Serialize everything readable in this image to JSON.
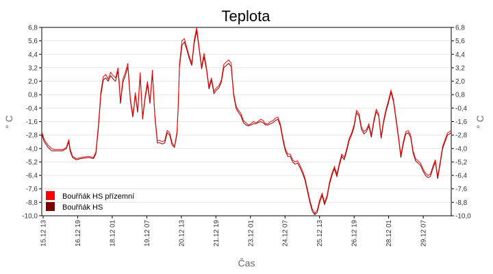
{
  "chart_data": {
    "type": "line",
    "title": "Teplota",
    "xlabel": "Čas",
    "ylabel": "° C",
    "ylim": [
      -10.0,
      6.8
    ],
    "y_ticks": [
      "6,8",
      "5,6",
      "4,4",
      "3,2",
      "2,0",
      "0,8",
      "-0,4",
      "-1,6",
      "-2,8",
      "-4,0",
      "-5,2",
      "-6,4",
      "-7,6",
      "-8,8",
      "-10,0"
    ],
    "x_ticks": [
      "15.12 13",
      "16.12 19",
      "18.12 01",
      "19.12 07",
      "20.12 13",
      "21.12 19",
      "23.12 01",
      "24.12 07",
      "25.12 13",
      "26.12 19",
      "28.12 01",
      "29.12 07"
    ],
    "x_range_hours": [
      0,
      333
    ],
    "grid": true,
    "legend_position": "bottom-left",
    "series": [
      {
        "name": "Bouřňák HS přízemní",
        "color": "#ff0000",
        "x": [
          0,
          2,
          5,
          8,
          10,
          14,
          17,
          20,
          22,
          23,
          25,
          28,
          32,
          38,
          42,
          44,
          46,
          48,
          50,
          52,
          54,
          56,
          58,
          60,
          62,
          63,
          64,
          66,
          68,
          70,
          72,
          74,
          75,
          76,
          78,
          80,
          82,
          84,
          86,
          88,
          90,
          92,
          94,
          96,
          98,
          100,
          102,
          104,
          106,
          108,
          110,
          111,
          112,
          114,
          116,
          118,
          120,
          122,
          124,
          126,
          128,
          130,
          132,
          134,
          136,
          138,
          140,
          142,
          144,
          146,
          148,
          150,
          152,
          154,
          156,
          158,
          160,
          162,
          164,
          166,
          168,
          170,
          172,
          174,
          176,
          178,
          180,
          182,
          184,
          186,
          188,
          190,
          192,
          194,
          196,
          198,
          200,
          202,
          204,
          206,
          208,
          210,
          212,
          214,
          216,
          218,
          220,
          222,
          224,
          226,
          228,
          230,
          232,
          234,
          236,
          238,
          240,
          242,
          244,
          246,
          248,
          250,
          252,
          254,
          256,
          258,
          260,
          262,
          264,
          266,
          268,
          270,
          272,
          274,
          276,
          278,
          280,
          282,
          284,
          286,
          288,
          290,
          292,
          294,
          296,
          298,
          300,
          302,
          304,
          306,
          308,
          310,
          312,
          314,
          316,
          318,
          320,
          322,
          324,
          326,
          328,
          330,
          333
        ],
        "y": [
          -2.5,
          -3.2,
          -3.7,
          -4.0,
          -4.1,
          -4.1,
          -4.1,
          -3.9,
          -3.2,
          -4.0,
          -4.7,
          -4.9,
          -4.8,
          -4.7,
          -4.8,
          -4.3,
          -2.0,
          1.0,
          2.4,
          2.6,
          2.2,
          2.8,
          2.5,
          2.3,
          3.2,
          2.0,
          0.2,
          2.2,
          2.8,
          3.6,
          0.5,
          -1.0,
          -0.2,
          1.0,
          -0.6,
          2.8,
          -1.2,
          0.6,
          2.0,
          0.2,
          3.0,
          -1.0,
          -3.3,
          -3.3,
          -3.4,
          -3.3,
          -2.4,
          -2.6,
          -3.5,
          -3.8,
          -2.5,
          0.0,
          3.5,
          5.6,
          5.8,
          5.0,
          4.2,
          3.6,
          5.7,
          6.8,
          5.0,
          3.3,
          4.5,
          3.2,
          1.5,
          2.3,
          1.1,
          1.4,
          1.6,
          2.1,
          3.5,
          3.7,
          3.9,
          3.6,
          1.0,
          -0.2,
          -0.6,
          -0.9,
          -1.5,
          -1.7,
          -1.9,
          -1.8,
          -1.6,
          -1.7,
          -1.6,
          -1.4,
          -1.5,
          -1.8,
          -1.8,
          -1.6,
          -1.5,
          -1.3,
          -1.2,
          -1.8,
          -3.0,
          -4.0,
          -4.5,
          -4.5,
          -5.0,
          -5.2,
          -5.1,
          -5.5,
          -6.0,
          -6.6,
          -7.6,
          -8.6,
          -9.4,
          -9.8,
          -9.5,
          -8.6,
          -8.0,
          -8.8,
          -8.2,
          -7.0,
          -6.2,
          -5.6,
          -6.3,
          -5.3,
          -4.5,
          -4.8,
          -4.0,
          -3.1,
          -2.6,
          -1.9,
          -0.6,
          -0.9,
          -2.1,
          -2.5,
          -2.3,
          -1.8,
          -2.8,
          -1.5,
          -0.5,
          -0.9,
          -2.9,
          -1.5,
          -0.5,
          0.3,
          1.2,
          0.4,
          -1.2,
          -2.8,
          -4.6,
          -3.4,
          -2.5,
          -2.4,
          -2.8,
          -4.2,
          -4.9,
          -5.1,
          -5.3,
          -5.8,
          -6.2,
          -6.4,
          -6.3,
          -5.6,
          -5.0,
          -6.5,
          -5.2,
          -3.8,
          -3.2,
          -2.6,
          -2.4
        ]
      },
      {
        "name": "Bouřňák HS",
        "color": "#800000",
        "x": [
          0,
          2,
          5,
          8,
          10,
          14,
          17,
          20,
          22,
          23,
          25,
          28,
          32,
          38,
          42,
          44,
          46,
          48,
          50,
          52,
          54,
          56,
          58,
          60,
          62,
          63,
          64,
          66,
          68,
          70,
          72,
          74,
          75,
          76,
          78,
          80,
          82,
          84,
          86,
          88,
          90,
          92,
          94,
          96,
          98,
          100,
          102,
          104,
          106,
          108,
          110,
          111,
          112,
          114,
          116,
          118,
          120,
          122,
          124,
          126,
          128,
          130,
          132,
          134,
          136,
          138,
          140,
          142,
          144,
          146,
          148,
          150,
          152,
          154,
          156,
          158,
          160,
          162,
          164,
          166,
          168,
          170,
          172,
          174,
          176,
          178,
          180,
          182,
          184,
          186,
          188,
          190,
          192,
          194,
          196,
          198,
          200,
          202,
          204,
          206,
          208,
          210,
          212,
          214,
          216,
          218,
          220,
          222,
          224,
          226,
          228,
          230,
          232,
          234,
          236,
          238,
          240,
          242,
          244,
          246,
          248,
          250,
          252,
          254,
          256,
          258,
          260,
          262,
          264,
          266,
          268,
          270,
          272,
          274,
          276,
          278,
          280,
          282,
          284,
          286,
          288,
          290,
          292,
          294,
          296,
          298,
          300,
          302,
          304,
          306,
          308,
          310,
          312,
          314,
          316,
          318,
          320,
          322,
          324,
          326,
          328,
          330,
          333
        ],
        "y": [
          -2.7,
          -3.4,
          -3.9,
          -4.2,
          -4.2,
          -4.2,
          -4.2,
          -4.0,
          -3.4,
          -4.2,
          -4.8,
          -5.0,
          -4.9,
          -4.8,
          -4.9,
          -4.5,
          -2.3,
          0.7,
          2.1,
          2.3,
          2.0,
          2.5,
          2.2,
          2.0,
          2.9,
          1.7,
          0.0,
          1.9,
          2.5,
          3.3,
          0.3,
          -1.2,
          -0.4,
          0.8,
          -0.8,
          2.5,
          -1.4,
          0.4,
          1.7,
          0.0,
          2.7,
          -1.2,
          -3.5,
          -3.5,
          -3.6,
          -3.5,
          -2.6,
          -2.8,
          -3.7,
          -3.9,
          -2.7,
          -0.3,
          3.2,
          5.2,
          5.5,
          4.8,
          4.0,
          3.4,
          5.4,
          6.5,
          4.8,
          3.1,
          4.2,
          3.0,
          1.3,
          2.1,
          0.9,
          1.2,
          1.4,
          1.9,
          3.2,
          3.4,
          3.6,
          3.3,
          0.8,
          -0.4,
          -0.8,
          -1.1,
          -1.7,
          -1.9,
          -2.0,
          -1.9,
          -1.8,
          -1.8,
          -1.7,
          -1.6,
          -1.7,
          -1.9,
          -1.9,
          -1.8,
          -1.7,
          -1.5,
          -1.4,
          -2.0,
          -3.2,
          -4.2,
          -4.7,
          -4.7,
          -5.2,
          -5.4,
          -5.3,
          -5.7,
          -6.2,
          -6.8,
          -7.8,
          -8.8,
          -9.6,
          -9.9,
          -9.7,
          -8.8,
          -8.2,
          -9.0,
          -8.4,
          -7.2,
          -6.4,
          -5.8,
          -6.5,
          -5.5,
          -4.7,
          -5.0,
          -4.2,
          -3.3,
          -2.8,
          -2.1,
          -0.8,
          -1.1,
          -2.3,
          -2.7,
          -2.5,
          -2.0,
          -3.0,
          -1.7,
          -0.7,
          -1.1,
          -3.1,
          -1.7,
          -0.7,
          0.1,
          1.0,
          0.2,
          -1.4,
          -3.0,
          -4.8,
          -3.6,
          -2.7,
          -2.6,
          -3.0,
          -4.4,
          -5.1,
          -5.3,
          -5.5,
          -6.0,
          -6.4,
          -6.6,
          -6.5,
          -5.8,
          -5.2,
          -6.7,
          -5.4,
          -4.0,
          -3.4,
          -2.8,
          -2.6
        ]
      }
    ]
  }
}
